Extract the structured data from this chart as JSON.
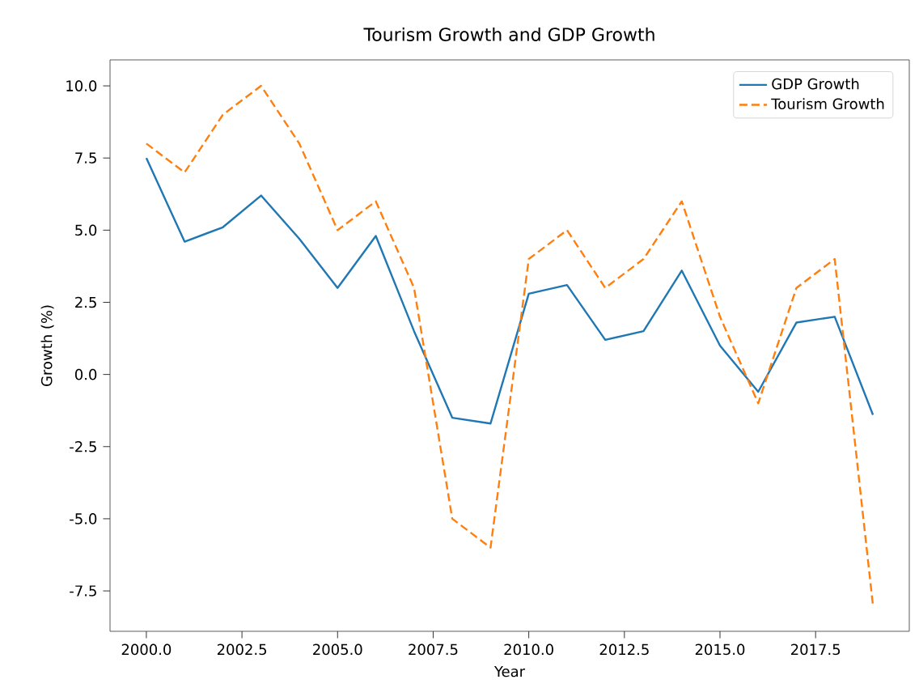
{
  "chart_data": {
    "type": "line",
    "title": "Tourism Growth and GDP Growth",
    "xlabel": "Year",
    "ylabel": "Growth (%)",
    "x": [
      2000,
      2001,
      2002,
      2003,
      2004,
      2005,
      2006,
      2007,
      2008,
      2009,
      2010,
      2011,
      2012,
      2013,
      2014,
      2015,
      2016,
      2017,
      2018,
      2019
    ],
    "series": [
      {
        "name": "GDP Growth",
        "color": "#1f77b4",
        "line_style": "solid",
        "values": [
          7.5,
          4.6,
          5.1,
          6.2,
          4.7,
          3.0,
          4.8,
          1.5,
          -1.5,
          -1.7,
          2.8,
          3.1,
          1.2,
          1.5,
          3.6,
          1.0,
          -0.6,
          1.8,
          2.0,
          -1.4
        ]
      },
      {
        "name": "Tourism Growth",
        "color": "#ff7f0e",
        "line_style": "dashed",
        "values": [
          8,
          7,
          9,
          10,
          8,
          5,
          6,
          3,
          -5,
          -6,
          4,
          5,
          3,
          4,
          6,
          2,
          -1,
          3,
          4,
          -8
        ]
      }
    ],
    "xlim": [
      1999.05,
      2019.95
    ],
    "ylim": [
      -8.9,
      10.9
    ],
    "xticks": [
      {
        "value": 2000,
        "label": "2000.0"
      },
      {
        "value": 2002.5,
        "label": "2002.5"
      },
      {
        "value": 2005,
        "label": "2005.0"
      },
      {
        "value": 2007.5,
        "label": "2007.5"
      },
      {
        "value": 2010,
        "label": "2010.0"
      },
      {
        "value": 2012.5,
        "label": "2012.5"
      },
      {
        "value": 2015,
        "label": "2015.0"
      },
      {
        "value": 2017.5,
        "label": "2017.5"
      }
    ],
    "yticks": [
      {
        "value": -7.5,
        "label": "-7.5"
      },
      {
        "value": -5,
        "label": "-5.0"
      },
      {
        "value": -2.5,
        "label": "-2.5"
      },
      {
        "value": 0,
        "label": "0.0"
      },
      {
        "value": 2.5,
        "label": "2.5"
      },
      {
        "value": 5,
        "label": "5.0"
      },
      {
        "value": 7.5,
        "label": "7.5"
      },
      {
        "value": 10,
        "label": "10.0"
      }
    ],
    "legend": "top right",
    "grid": false
  }
}
